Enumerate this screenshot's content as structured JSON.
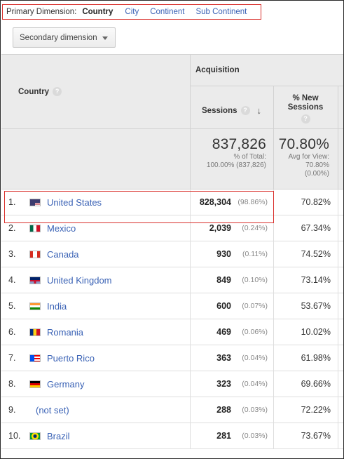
{
  "primary_dimension": {
    "label": "Primary Dimension:",
    "current": "Country",
    "options": [
      "City",
      "Continent",
      "Sub Continent"
    ]
  },
  "secondary_dimension": {
    "label": "Secondary dimension"
  },
  "header": {
    "country": "Country",
    "acquisition": "Acquisition",
    "sessions": "Sessions",
    "new_sessions_line1": "% New",
    "new_sessions_line2": "Sessions"
  },
  "totals": {
    "sessions": "837,826",
    "sessions_sub1": "% of Total:",
    "sessions_sub2": "100.00% (837,826)",
    "new_sessions": "70.80%",
    "new_sub1": "Avg for View:",
    "new_sub2": "70.80%",
    "new_sub3": "(0.00%)"
  },
  "rows": [
    {
      "num": "1.",
      "country": "United States",
      "flag": "us-flag-icon",
      "sessions": "828,304",
      "pct": "(98.86%)",
      "new": "70.82%"
    },
    {
      "num": "2.",
      "country": "Mexico",
      "flag": "mx-flag-icon",
      "sessions": "2,039",
      "pct": "(0.24%)",
      "new": "67.34%"
    },
    {
      "num": "3.",
      "country": "Canada",
      "flag": "ca-flag-icon",
      "sessions": "930",
      "pct": "(0.11%)",
      "new": "74.52%"
    },
    {
      "num": "4.",
      "country": "United Kingdom",
      "flag": "gb-flag-icon",
      "sessions": "849",
      "pct": "(0.10%)",
      "new": "73.14%"
    },
    {
      "num": "5.",
      "country": "India",
      "flag": "in-flag-icon",
      "sessions": "600",
      "pct": "(0.07%)",
      "new": "53.67%"
    },
    {
      "num": "6.",
      "country": "Romania",
      "flag": "ro-flag-icon",
      "sessions": "469",
      "pct": "(0.06%)",
      "new": "10.02%"
    },
    {
      "num": "7.",
      "country": "Puerto Rico",
      "flag": "pr-flag-icon",
      "sessions": "363",
      "pct": "(0.04%)",
      "new": "61.98%"
    },
    {
      "num": "8.",
      "country": "Germany",
      "flag": "de-flag-icon",
      "sessions": "323",
      "pct": "(0.04%)",
      "new": "69.66%"
    },
    {
      "num": "9.",
      "country": "(not set)",
      "flag": "",
      "sessions": "288",
      "pct": "(0.03%)",
      "new": "72.22%"
    },
    {
      "num": "10.",
      "country": "Brazil",
      "flag": "br-flag-icon",
      "sessions": "281",
      "pct": "(0.03%)",
      "new": "73.67%"
    }
  ],
  "colors": {
    "link": "#3a62b5",
    "highlight": "#d9302c",
    "header_bg": "#ebebeb"
  }
}
